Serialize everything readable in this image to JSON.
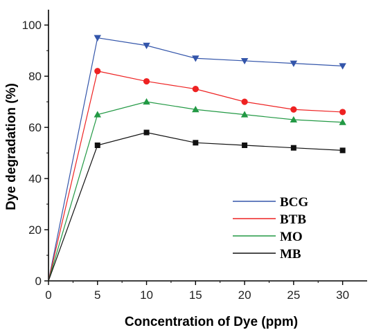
{
  "chart_data": {
    "type": "line",
    "xlabel": "Concentration of Dye (ppm)",
    "ylabel": "Dye degradation (%)",
    "xlim": [
      0,
      32.5
    ],
    "ylim": [
      0,
      106
    ],
    "x": [
      0,
      5,
      10,
      15,
      20,
      25,
      30
    ],
    "xticks": [
      0,
      5,
      10,
      15,
      20,
      25,
      30
    ],
    "yticks": [
      0,
      20,
      40,
      60,
      80,
      100
    ],
    "legend_position": "lower-right",
    "grid": false,
    "series": [
      {
        "name": "BCG",
        "color": "#3355aa",
        "marker": "triangle-down",
        "values": [
          0,
          95,
          92,
          87,
          86,
          85,
          84
        ]
      },
      {
        "name": "BTB",
        "color": "#ee2222",
        "marker": "circle",
        "values": [
          0,
          82,
          78,
          75,
          70,
          67,
          66
        ]
      },
      {
        "name": "MO",
        "color": "#229944",
        "marker": "triangle-up",
        "values": [
          0,
          65,
          70,
          67,
          65,
          63,
          62
        ]
      },
      {
        "name": "MB",
        "color": "#111111",
        "marker": "square",
        "values": [
          0,
          53,
          58,
          54,
          53,
          52,
          51
        ]
      }
    ]
  }
}
